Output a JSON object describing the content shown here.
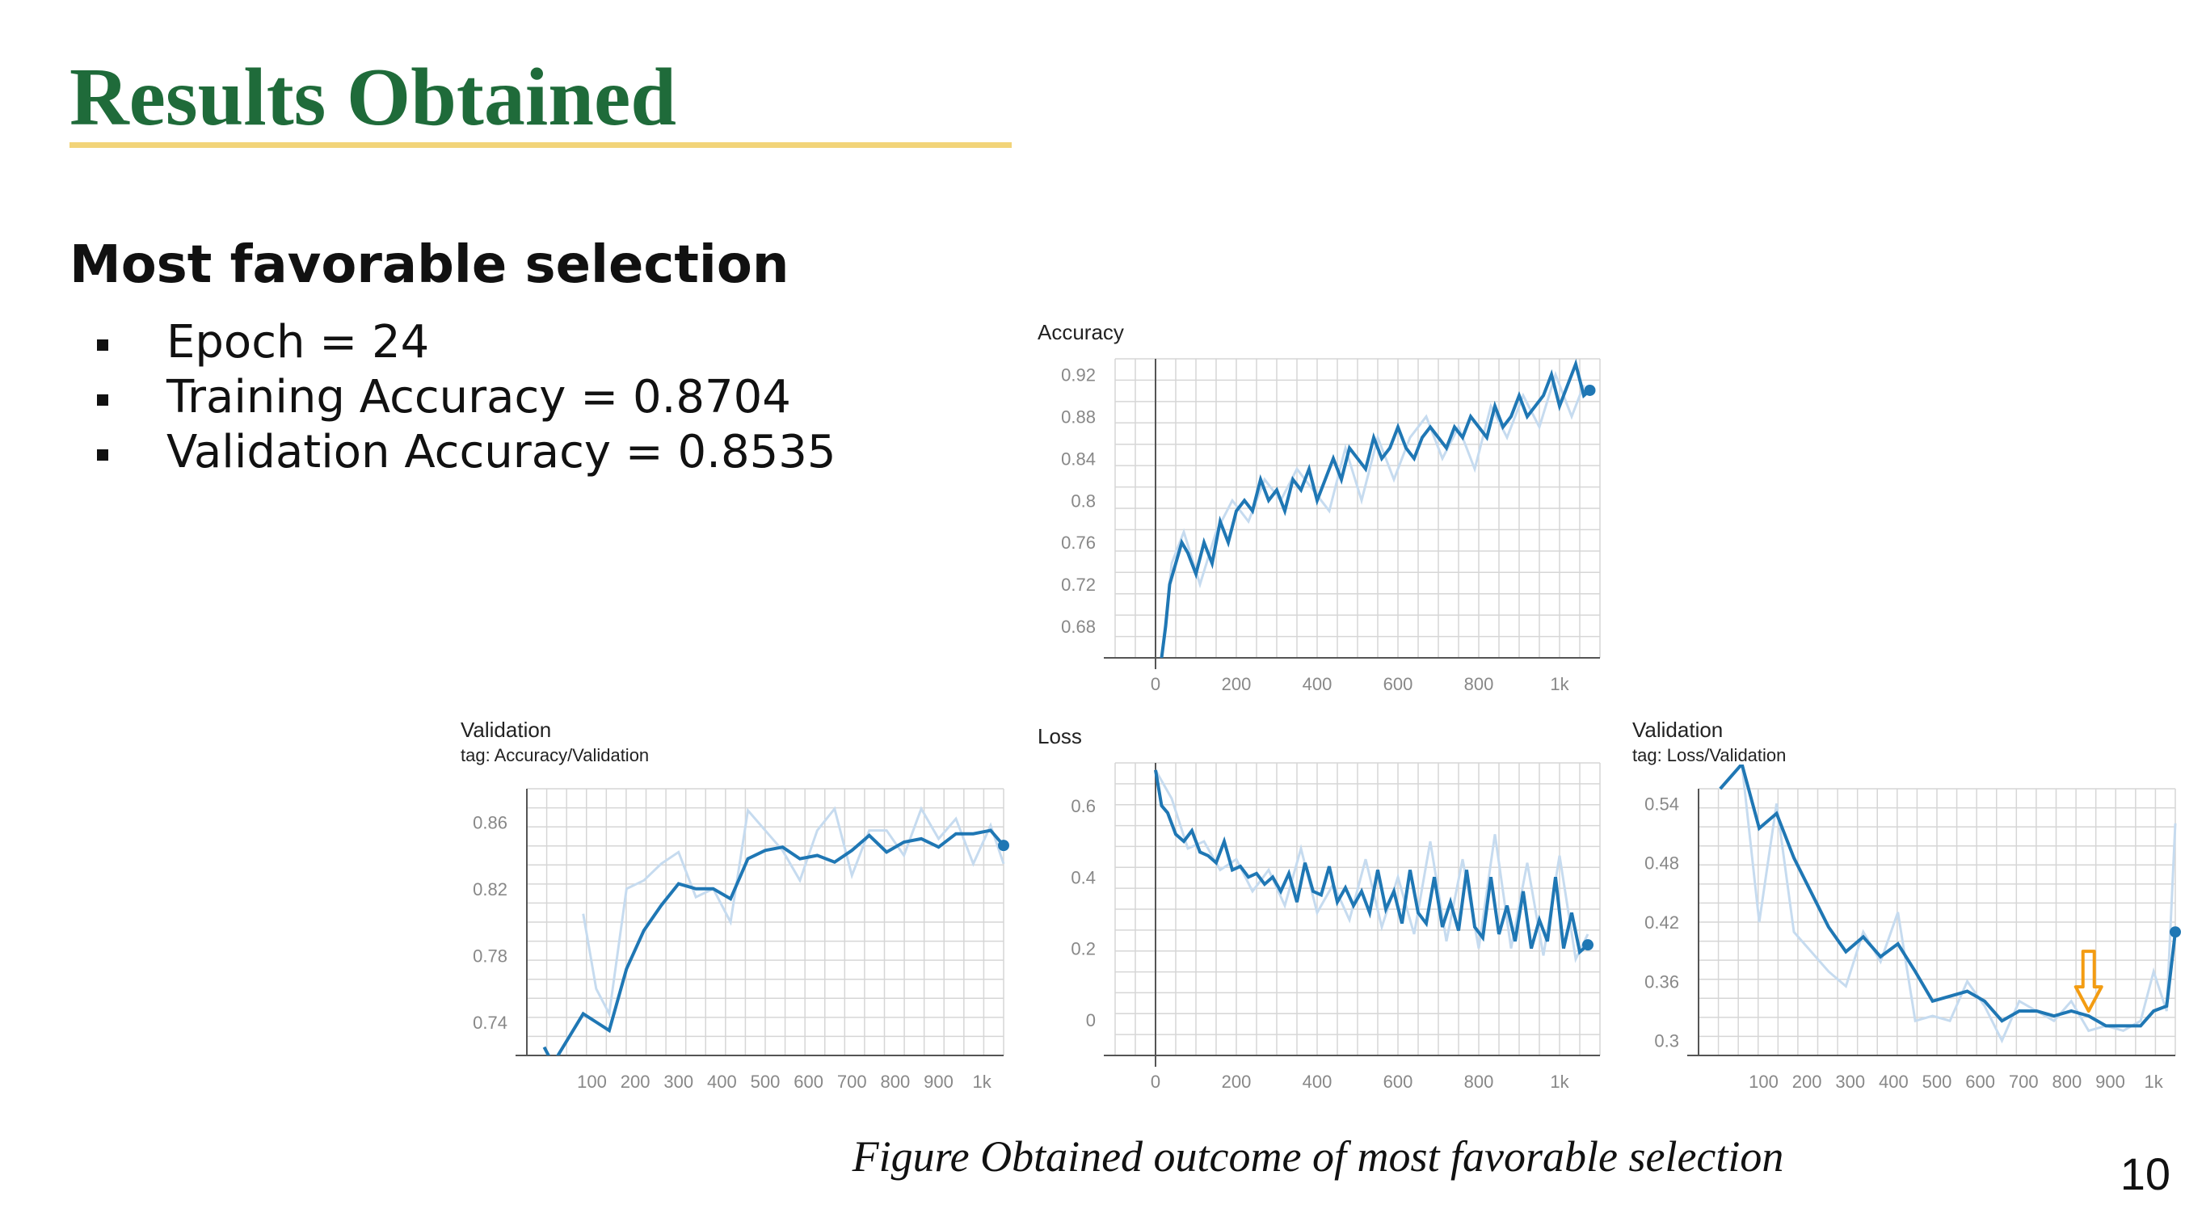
{
  "slide": {
    "title": "Results Obtained",
    "subtitle": "Most favorable selection",
    "bullets": [
      "Epoch = 24",
      "Training Accuracy = 0.8704",
      "Validation Accuracy = 0.8535"
    ],
    "caption": "Figure Obtained outcome of most favorable selection",
    "page_number": "10"
  },
  "colors": {
    "title": "#1f6b3a",
    "title_rule": "#f2d479",
    "smoothed_line": "#1f77b4",
    "raw_line": "#c6dbef",
    "grid": "#d6d6d6",
    "arrow": "#f39c12"
  },
  "chart_data": [
    {
      "id": "acc",
      "type": "line",
      "title": "Accuracy",
      "subtitle": "",
      "xlim": [
        -100,
        1100
      ],
      "ylim": [
        0.65,
        0.935
      ],
      "xticks": [
        0,
        200,
        400,
        600,
        800,
        1000
      ],
      "xtick_labels": [
        "0",
        "200",
        "400",
        "600",
        "800",
        "1k"
      ],
      "yticks": [
        0.68,
        0.72,
        0.76,
        0.8,
        0.84,
        0.88,
        0.92
      ],
      "ytick_labels": [
        "0.68",
        "0.72",
        "0.76",
        "0.8",
        "0.84",
        "0.88",
        "0.92"
      ],
      "y_axis_at_zero": true,
      "series": [
        {
          "values_x": [
            15,
            25,
            35,
            50,
            65,
            80,
            100,
            120,
            140,
            160,
            180,
            200,
            220,
            240,
            260,
            280,
            300,
            320,
            340,
            360,
            380,
            400,
            420,
            440,
            460,
            480,
            500,
            520,
            540,
            560,
            580,
            600,
            620,
            640,
            660,
            680,
            700,
            720,
            740,
            760,
            780,
            800,
            820,
            840,
            860,
            880,
            900,
            920,
            940,
            960,
            980,
            1000,
            1020,
            1040,
            1060,
            1075
          ],
          "values_y": [
            0.65,
            0.68,
            0.72,
            0.74,
            0.76,
            0.75,
            0.73,
            0.76,
            0.74,
            0.78,
            0.76,
            0.79,
            0.8,
            0.79,
            0.82,
            0.8,
            0.81,
            0.79,
            0.82,
            0.81,
            0.83,
            0.8,
            0.82,
            0.84,
            0.82,
            0.85,
            0.84,
            0.83,
            0.86,
            0.84,
            0.85,
            0.87,
            0.85,
            0.84,
            0.86,
            0.87,
            0.86,
            0.85,
            0.87,
            0.86,
            0.88,
            0.87,
            0.86,
            0.89,
            0.87,
            0.88,
            0.9,
            0.88,
            0.89,
            0.9,
            0.92,
            0.89,
            0.91,
            0.93,
            0.9,
            0.905
          ]
        }
      ],
      "raw": {
        "values_x": [
          15,
          40,
          70,
          110,
          150,
          190,
          230,
          270,
          310,
          350,
          390,
          430,
          470,
          510,
          550,
          590,
          630,
          670,
          710,
          750,
          790,
          830,
          870,
          910,
          950,
          990,
          1030,
          1060
        ],
        "values_y": [
          0.65,
          0.74,
          0.77,
          0.72,
          0.77,
          0.8,
          0.78,
          0.82,
          0.8,
          0.83,
          0.81,
          0.79,
          0.85,
          0.8,
          0.86,
          0.82,
          0.86,
          0.88,
          0.84,
          0.87,
          0.83,
          0.89,
          0.86,
          0.9,
          0.87,
          0.92,
          0.88,
          0.91
        ]
      },
      "end_point": [
        1075,
        0.905
      ]
    },
    {
      "id": "val-acc",
      "type": "line",
      "title": "Validation",
      "subtitle": "tag: Accuracy/Validation",
      "xlim": [
        -50,
        1050
      ],
      "ylim": [
        0.72,
        0.88
      ],
      "xticks": [
        100,
        200,
        300,
        400,
        500,
        600,
        700,
        800,
        900,
        1000
      ],
      "xtick_labels": [
        "100",
        "200",
        "300",
        "400",
        "500",
        "600",
        "700",
        "800",
        "900",
        "1k"
      ],
      "yticks": [
        0.74,
        0.78,
        0.82,
        0.86
      ],
      "ytick_labels": [
        "0.74",
        "0.78",
        "0.82",
        "0.86"
      ],
      "y_axis_at_zero": false,
      "series": [
        {
          "values_x": [
            -10,
            10,
            80,
            110,
            140,
            180,
            220,
            260,
            300,
            340,
            380,
            420,
            460,
            500,
            540,
            580,
            620,
            660,
            700,
            740,
            780,
            820,
            860,
            900,
            940,
            980,
            1020,
            1050
          ],
          "values_y": [
            0.725,
            0.715,
            0.745,
            0.74,
            0.735,
            0.772,
            0.795,
            0.81,
            0.823,
            0.82,
            0.82,
            0.814,
            0.838,
            0.843,
            0.845,
            0.838,
            0.84,
            0.836,
            0.843,
            0.852,
            0.842,
            0.848,
            0.85,
            0.845,
            0.853,
            0.853,
            0.855,
            0.846
          ]
        }
      ],
      "raw": {
        "values_x": [
          80,
          110,
          140,
          180,
          220,
          260,
          300,
          340,
          380,
          420,
          460,
          500,
          540,
          580,
          620,
          660,
          700,
          740,
          780,
          820,
          860,
          900,
          940,
          980,
          1020,
          1050
        ],
        "values_y": [
          0.805,
          0.76,
          0.745,
          0.82,
          0.825,
          0.835,
          0.842,
          0.815,
          0.82,
          0.8,
          0.867,
          0.855,
          0.843,
          0.825,
          0.855,
          0.868,
          0.828,
          0.855,
          0.855,
          0.84,
          0.868,
          0.85,
          0.862,
          0.835,
          0.858,
          0.835
        ]
      },
      "end_point": [
        1050,
        0.846
      ]
    },
    {
      "id": "loss",
      "type": "line",
      "title": "Loss",
      "subtitle": "",
      "xlim": [
        -100,
        1100
      ],
      "ylim": [
        -0.1,
        0.72
      ],
      "xticks": [
        0,
        200,
        400,
        600,
        800,
        1000
      ],
      "xtick_labels": [
        "0",
        "200",
        "400",
        "600",
        "800",
        "1k"
      ],
      "yticks": [
        0,
        0.2,
        0.4,
        0.6
      ],
      "ytick_labels": [
        "0",
        "0.2",
        "0.4",
        "0.6"
      ],
      "y_axis_at_zero": true,
      "series": [
        {
          "values_x": [
            0,
            15,
            30,
            50,
            70,
            90,
            110,
            130,
            150,
            170,
            190,
            210,
            230,
            250,
            270,
            290,
            310,
            330,
            350,
            370,
            390,
            410,
            430,
            450,
            470,
            490,
            510,
            530,
            550,
            570,
            590,
            610,
            630,
            650,
            670,
            690,
            710,
            730,
            750,
            770,
            790,
            810,
            830,
            850,
            870,
            890,
            910,
            930,
            950,
            970,
            990,
            1010,
            1030,
            1050,
            1070
          ],
          "values_y": [
            0.7,
            0.6,
            0.58,
            0.52,
            0.5,
            0.53,
            0.47,
            0.46,
            0.44,
            0.5,
            0.42,
            0.43,
            0.4,
            0.41,
            0.38,
            0.4,
            0.36,
            0.41,
            0.33,
            0.44,
            0.36,
            0.35,
            0.43,
            0.33,
            0.37,
            0.32,
            0.36,
            0.3,
            0.42,
            0.31,
            0.36,
            0.27,
            0.42,
            0.3,
            0.27,
            0.4,
            0.26,
            0.33,
            0.25,
            0.42,
            0.26,
            0.23,
            0.4,
            0.24,
            0.32,
            0.22,
            0.36,
            0.2,
            0.28,
            0.22,
            0.4,
            0.2,
            0.3,
            0.19,
            0.21
          ]
        }
      ],
      "raw": {
        "values_x": [
          0,
          40,
          80,
          120,
          160,
          200,
          240,
          280,
          320,
          360,
          400,
          440,
          480,
          520,
          560,
          600,
          640,
          680,
          720,
          760,
          800,
          840,
          880,
          920,
          960,
          1000,
          1040,
          1070
        ],
        "values_y": [
          0.7,
          0.62,
          0.48,
          0.5,
          0.42,
          0.45,
          0.36,
          0.42,
          0.32,
          0.48,
          0.3,
          0.38,
          0.28,
          0.45,
          0.26,
          0.4,
          0.24,
          0.5,
          0.22,
          0.45,
          0.2,
          0.52,
          0.2,
          0.44,
          0.18,
          0.46,
          0.17,
          0.24
        ]
      },
      "end_point": [
        1070,
        0.21
      ]
    },
    {
      "id": "val-loss",
      "type": "line",
      "title": "Validation",
      "subtitle": "tag: Loss/Validation",
      "xlim": [
        -50,
        1050
      ],
      "ylim": [
        0.285,
        0.555
      ],
      "xticks": [
        100,
        200,
        300,
        400,
        500,
        600,
        700,
        800,
        900,
        1000
      ],
      "xtick_labels": [
        "100",
        "200",
        "300",
        "400",
        "500",
        "600",
        "700",
        "800",
        "900",
        "1k"
      ],
      "yticks": [
        0.3,
        0.36,
        0.42,
        0.48,
        0.54
      ],
      "ytick_labels": [
        "0.3",
        "0.36",
        "0.42",
        "0.48",
        "0.54"
      ],
      "y_axis_at_zero": false,
      "series": [
        {
          "values_x": [
            0,
            50,
            90,
            130,
            170,
            210,
            250,
            290,
            330,
            370,
            410,
            450,
            490,
            530,
            570,
            610,
            650,
            690,
            730,
            770,
            810,
            850,
            890,
            930,
            970,
            1000,
            1030,
            1050
          ],
          "values_y": [
            0.555,
            0.58,
            0.515,
            0.53,
            0.485,
            0.45,
            0.415,
            0.39,
            0.405,
            0.385,
            0.398,
            0.37,
            0.34,
            0.345,
            0.35,
            0.34,
            0.32,
            0.33,
            0.33,
            0.325,
            0.33,
            0.325,
            0.315,
            0.315,
            0.315,
            0.33,
            0.335,
            0.41
          ]
        }
      ],
      "raw": {
        "values_x": [
          0,
          50,
          90,
          130,
          170,
          210,
          250,
          290,
          330,
          370,
          410,
          450,
          490,
          530,
          570,
          610,
          650,
          690,
          730,
          770,
          810,
          850,
          890,
          930,
          970,
          1000,
          1030,
          1050
        ],
        "values_y": [
          0.555,
          0.58,
          0.42,
          0.54,
          0.41,
          0.39,
          0.37,
          0.355,
          0.41,
          0.38,
          0.43,
          0.32,
          0.325,
          0.32,
          0.36,
          0.335,
          0.3,
          0.34,
          0.33,
          0.32,
          0.34,
          0.31,
          0.315,
          0.31,
          0.32,
          0.37,
          0.33,
          0.52
        ]
      },
      "end_point": [
        1050,
        0.41
      ],
      "arrow_at": [
        850,
        0.325
      ]
    }
  ]
}
